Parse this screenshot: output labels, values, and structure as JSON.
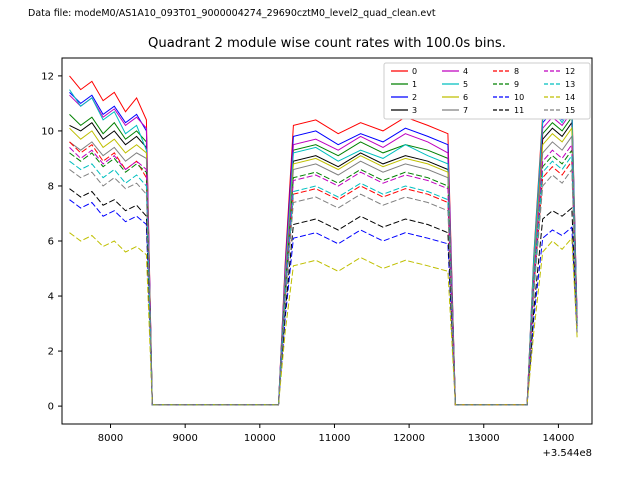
{
  "header": {
    "data_file_label": "Data file: modeM0/AS1A10_093T01_9000004274_29690cztM0_level2_quad_clean.evt"
  },
  "chart_data": {
    "type": "line",
    "title": "Quadrant 2 module wise count rates with 100.0s bins.",
    "xlabel": "",
    "ylabel": "",
    "x_offset_text": "+3.544e8",
    "xlim": [
      7350,
      14450
    ],
    "ylim": [
      -0.65,
      12.65
    ],
    "x_ticks": [
      "8000",
      "9000",
      "10000",
      "11000",
      "12000",
      "13000",
      "14000"
    ],
    "x_tick_values": [
      8000,
      9000,
      10000,
      11000,
      12000,
      13000,
      14000
    ],
    "y_ticks": [
      "0",
      "2",
      "4",
      "6",
      "8",
      "10",
      "12"
    ],
    "y_tick_values": [
      0,
      2,
      4,
      6,
      8,
      10,
      12
    ],
    "grid": false,
    "legend_position": "upper right",
    "legend_columns": 4,
    "x": [
      7450,
      7600,
      7750,
      7900,
      8050,
      8200,
      8350,
      8480,
      8560,
      9000,
      9800,
      10250,
      10340,
      10450,
      10750,
      11050,
      11350,
      11650,
      11950,
      12250,
      12520,
      12620,
      13000,
      13580,
      13670,
      13790,
      13920,
      14050,
      14180,
      14250
    ],
    "series": [
      {
        "name": "0",
        "color": "#ff0000",
        "dash": false,
        "values": [
          12.0,
          11.5,
          11.8,
          11.1,
          11.4,
          10.7,
          11.2,
          10.4,
          0.05,
          0.05,
          0.05,
          0.05,
          5.2,
          10.2,
          10.4,
          9.9,
          10.3,
          10.0,
          10.5,
          10.2,
          9.9,
          0.05,
          0.05,
          0.05,
          5.5,
          10.6,
          10.9,
          10.5,
          11.2,
          3.2
        ]
      },
      {
        "name": "1",
        "color": "#008000",
        "dash": false,
        "values": [
          10.6,
          10.2,
          10.5,
          9.9,
          10.3,
          9.7,
          10.0,
          9.6,
          0.05,
          0.05,
          0.05,
          0.05,
          4.7,
          9.3,
          9.5,
          9.1,
          9.6,
          9.2,
          9.5,
          9.3,
          9.0,
          0.05,
          0.05,
          0.05,
          5.0,
          9.9,
          10.3,
          10.0,
          10.5,
          3.1
        ]
      },
      {
        "name": "2",
        "color": "#0000ff",
        "dash": false,
        "values": [
          11.4,
          11.0,
          11.3,
          10.6,
          10.9,
          10.3,
          10.6,
          10.0,
          0.05,
          0.05,
          0.05,
          0.05,
          5.0,
          9.8,
          10.0,
          9.5,
          9.9,
          9.6,
          10.1,
          9.8,
          9.5,
          0.05,
          0.05,
          0.05,
          5.3,
          10.3,
          10.7,
          10.4,
          10.9,
          3.2
        ]
      },
      {
        "name": "3",
        "color": "#000000",
        "dash": false,
        "values": [
          10.2,
          10.0,
          10.3,
          9.7,
          10.0,
          9.5,
          9.8,
          9.4,
          0.05,
          0.05,
          0.05,
          0.05,
          4.5,
          8.9,
          9.1,
          8.7,
          9.2,
          8.8,
          9.1,
          8.9,
          8.6,
          0.05,
          0.05,
          0.05,
          4.9,
          9.7,
          10.1,
          9.8,
          10.3,
          3.0
        ]
      },
      {
        "name": "4",
        "color": "#bf00bf",
        "dash": false,
        "values": [
          11.3,
          10.9,
          11.2,
          10.5,
          10.8,
          10.2,
          10.5,
          10.1,
          0.05,
          0.05,
          0.05,
          0.05,
          4.9,
          9.5,
          9.7,
          9.3,
          9.8,
          9.4,
          9.9,
          9.6,
          9.2,
          0.05,
          0.05,
          0.05,
          5.1,
          10.1,
          10.5,
          10.2,
          10.7,
          3.1
        ]
      },
      {
        "name": "5",
        "color": "#00bfbf",
        "dash": false,
        "values": [
          11.5,
          10.9,
          11.2,
          10.4,
          10.7,
          9.9,
          10.2,
          9.3,
          0.05,
          0.05,
          0.05,
          0.05,
          4.7,
          9.2,
          9.4,
          8.9,
          9.3,
          9.0,
          9.5,
          9.1,
          8.8,
          0.05,
          0.05,
          0.05,
          5.4,
          10.4,
          10.8,
          10.3,
          10.9,
          3.0
        ]
      },
      {
        "name": "6",
        "color": "#bfbf00",
        "dash": false,
        "values": [
          10.1,
          9.7,
          10.0,
          9.4,
          9.7,
          9.2,
          9.5,
          9.2,
          0.05,
          0.05,
          0.05,
          0.05,
          4.5,
          8.8,
          9.0,
          8.6,
          9.1,
          8.7,
          9.0,
          8.8,
          8.5,
          0.05,
          0.05,
          0.05,
          4.9,
          9.5,
          9.9,
          9.6,
          10.1,
          2.9
        ]
      },
      {
        "name": "7",
        "color": "#808080",
        "dash": false,
        "values": [
          9.6,
          9.3,
          9.6,
          9.1,
          9.4,
          8.9,
          9.2,
          9.0,
          0.05,
          0.05,
          0.05,
          0.05,
          4.4,
          8.6,
          8.8,
          8.4,
          8.9,
          8.5,
          8.8,
          8.6,
          8.3,
          0.05,
          0.05,
          0.05,
          4.8,
          9.2,
          9.6,
          9.3,
          9.8,
          2.9
        ]
      },
      {
        "name": "8",
        "color": "#ff0000",
        "dash": true,
        "values": [
          9.6,
          9.2,
          9.5,
          8.9,
          9.2,
          8.6,
          8.9,
          8.3,
          0.05,
          0.05,
          0.05,
          0.05,
          3.9,
          7.7,
          7.9,
          7.5,
          8.0,
          7.6,
          7.9,
          7.7,
          7.4,
          0.05,
          0.05,
          0.05,
          4.3,
          8.3,
          8.7,
          8.4,
          8.9,
          2.8
        ]
      },
      {
        "name": "9",
        "color": "#008000",
        "dash": true,
        "values": [
          9.2,
          8.9,
          9.2,
          8.7,
          9.0,
          8.5,
          8.8,
          8.5,
          0.05,
          0.05,
          0.05,
          0.05,
          4.2,
          8.3,
          8.5,
          8.1,
          8.6,
          8.2,
          8.5,
          8.3,
          8.0,
          0.05,
          0.05,
          0.05,
          4.5,
          8.7,
          9.1,
          8.8,
          9.3,
          2.9
        ]
      },
      {
        "name": "10",
        "color": "#0000ff",
        "dash": true,
        "values": [
          7.5,
          7.2,
          7.4,
          6.9,
          7.1,
          6.7,
          6.9,
          6.6,
          0.05,
          0.05,
          0.05,
          0.05,
          3.2,
          6.1,
          6.3,
          5.9,
          6.4,
          6.0,
          6.3,
          6.1,
          5.9,
          0.05,
          0.05,
          0.05,
          3.2,
          6.1,
          6.4,
          6.2,
          6.5,
          2.6
        ]
      },
      {
        "name": "11",
        "color": "#000000",
        "dash": true,
        "values": [
          7.9,
          7.6,
          7.8,
          7.3,
          7.5,
          7.1,
          7.3,
          6.9,
          0.05,
          0.05,
          0.05,
          0.05,
          3.4,
          6.6,
          6.8,
          6.4,
          6.9,
          6.5,
          6.8,
          6.6,
          6.3,
          0.05,
          0.05,
          0.05,
          3.5,
          6.8,
          7.1,
          6.9,
          7.2,
          2.7
        ]
      },
      {
        "name": "12",
        "color": "#bf00bf",
        "dash": true,
        "values": [
          9.4,
          9.0,
          9.3,
          8.8,
          9.1,
          8.6,
          8.9,
          8.6,
          0.05,
          0.05,
          0.05,
          0.05,
          4.2,
          8.2,
          8.4,
          8.0,
          8.5,
          8.1,
          8.4,
          8.2,
          7.9,
          0.05,
          0.05,
          0.05,
          4.6,
          8.9,
          9.3,
          9.0,
          9.5,
          2.9
        ]
      },
      {
        "name": "13",
        "color": "#00bfbf",
        "dash": true,
        "values": [
          8.9,
          8.6,
          8.8,
          8.3,
          8.6,
          8.1,
          8.4,
          8.0,
          0.05,
          0.05,
          0.05,
          0.05,
          4.0,
          7.8,
          8.0,
          7.6,
          8.1,
          7.7,
          8.0,
          7.8,
          7.5,
          0.05,
          0.05,
          0.05,
          4.4,
          8.5,
          8.9,
          8.6,
          9.1,
          2.8
        ]
      },
      {
        "name": "14",
        "color": "#bfbf00",
        "dash": true,
        "values": [
          6.3,
          6.0,
          6.2,
          5.8,
          6.0,
          5.6,
          5.8,
          5.5,
          0.05,
          0.05,
          0.05,
          0.05,
          2.7,
          5.1,
          5.3,
          4.9,
          5.4,
          5.0,
          5.3,
          5.1,
          4.9,
          0.05,
          0.05,
          0.05,
          2.7,
          5.6,
          6.0,
          5.7,
          6.1,
          2.5
        ]
      },
      {
        "name": "15",
        "color": "#808080",
        "dash": true,
        "values": [
          8.6,
          8.3,
          8.5,
          8.0,
          8.3,
          7.9,
          8.1,
          7.7,
          0.05,
          0.05,
          0.05,
          0.05,
          3.8,
          7.4,
          7.6,
          7.2,
          7.7,
          7.3,
          7.6,
          7.4,
          7.1,
          0.05,
          0.05,
          0.05,
          4.1,
          8.0,
          8.4,
          8.1,
          8.6,
          2.7
        ]
      }
    ]
  }
}
